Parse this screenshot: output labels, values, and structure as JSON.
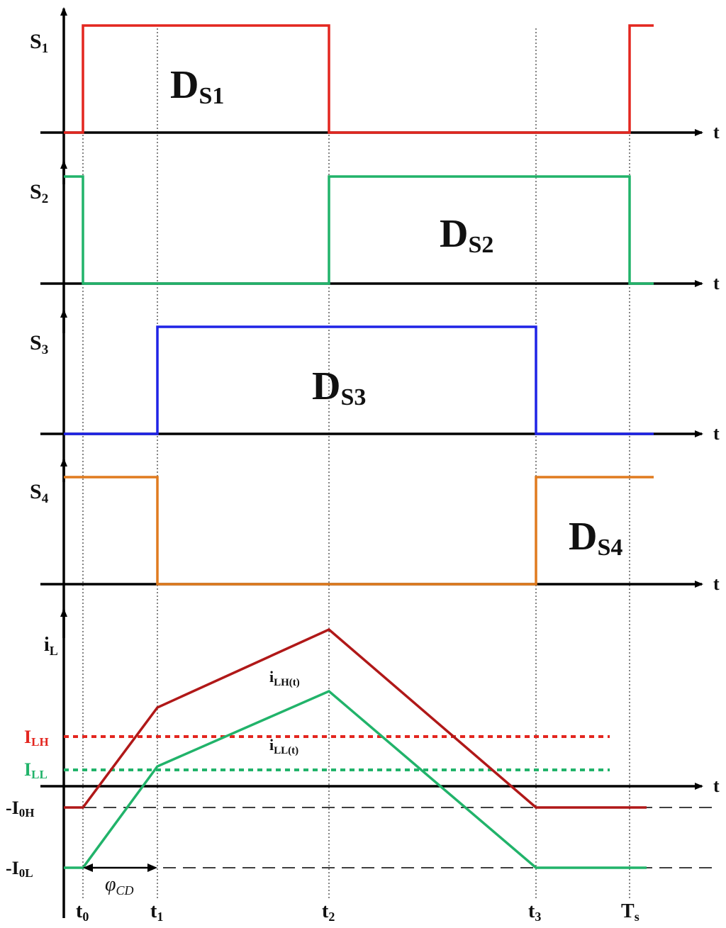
{
  "colors": {
    "s1": "#e3261f",
    "s2": "#21b36a",
    "s3": "#1f23e6",
    "s4": "#e07b1f",
    "ilh": "#b01818",
    "ill": "#21b36a",
    "ilh_ref": "#e3261f",
    "ill_ref": "#21b36a",
    "axis": "#000000"
  },
  "signals": {
    "s1": {
      "label": "S",
      "sub": "1",
      "duty": "D",
      "duty_sub": "S1"
    },
    "s2": {
      "label": "S",
      "sub": "2",
      "duty": "D",
      "duty_sub": "S2"
    },
    "s3": {
      "label": "S",
      "sub": "3",
      "duty": "D",
      "duty_sub": "S3"
    },
    "s4": {
      "label": "S",
      "sub": "4",
      "duty": "D",
      "duty_sub": "S4"
    }
  },
  "time_axis_label": "t",
  "current": {
    "label": "i",
    "label_sub": "L",
    "ilh": "i",
    "ilh_sub": "LH(t)",
    "ill": "i",
    "ill_sub": "LL(t)",
    "ref_h": "I",
    "ref_h_sub": "LH",
    "ref_l": "I",
    "ref_l_sub": "LL",
    "i0h": "-I",
    "i0h_sub": "0H",
    "i0l": "-I",
    "i0l_sub": "0L"
  },
  "phase_label": "φ",
  "phase_sub": "CD",
  "time_marks": [
    {
      "t": "t",
      "sub": "0"
    },
    {
      "t": "t",
      "sub": "1"
    },
    {
      "t": "t",
      "sub": "2"
    },
    {
      "t": "t",
      "sub": "3"
    },
    {
      "t": "T",
      "sub": "s"
    }
  ]
}
